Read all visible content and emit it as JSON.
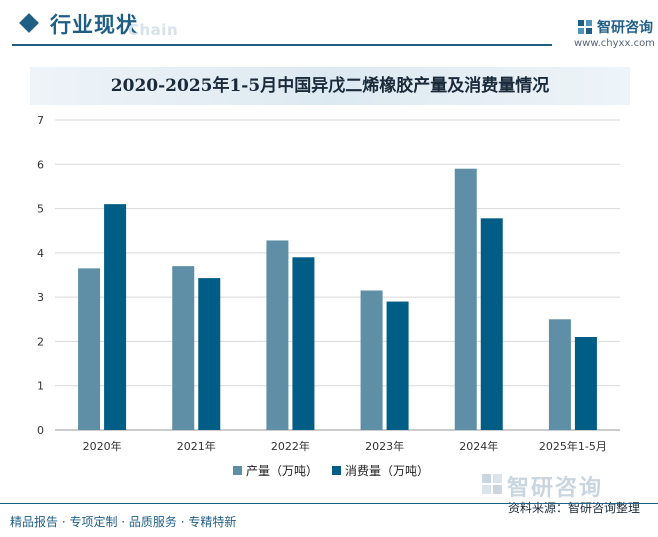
{
  "header": {
    "title": "行业现状",
    "ghost_text": "Chain",
    "brand_name": "智研咨询",
    "brand_url": "www.chyxx.com",
    "accent_color": "#1f5f86",
    "logo_icon": "brand-logo-icon"
  },
  "chart_data": {
    "type": "bar",
    "title": "2020-2025年1-5月中国异戊二烯橡胶产量及消费量情况",
    "categories": [
      "2020年",
      "2021年",
      "2022年",
      "2023年",
      "2024年",
      "2025年1-5月"
    ],
    "series": [
      {
        "name": "产量（万吨）",
        "color": "#5e8fa7",
        "values": [
          3.65,
          3.7,
          4.28,
          3.15,
          5.9,
          2.5
        ]
      },
      {
        "name": "消费量（万吨）",
        "color": "#005d85",
        "values": [
          5.1,
          3.43,
          3.9,
          2.9,
          4.78,
          2.1
        ]
      }
    ],
    "ylim": [
      0,
      7
    ],
    "yticks": [
      0,
      1,
      2,
      3,
      4,
      5,
      6,
      7
    ],
    "xlabel": "",
    "ylabel": "",
    "grid": true,
    "legend_position": "bottom"
  },
  "footer": {
    "tagline": "精品报告 · 专项定制 · 品质服务 · 专精特新",
    "logo_text": "智研咨询",
    "source": "资料来源：智研咨询整理"
  }
}
